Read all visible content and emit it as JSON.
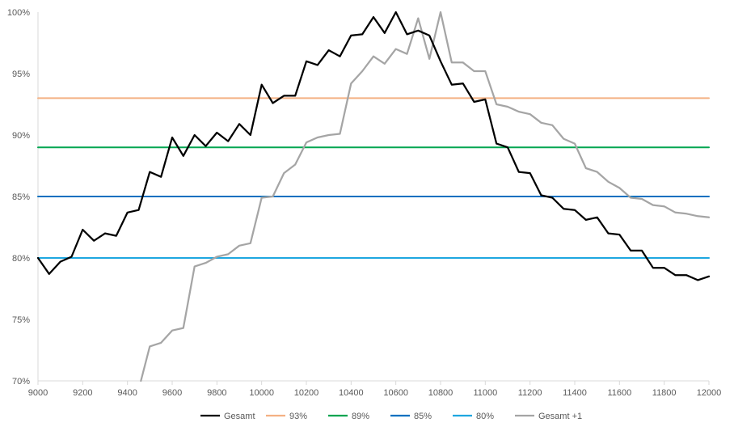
{
  "chart_data": {
    "type": "line",
    "title": "",
    "xlabel": "",
    "ylabel": "",
    "xlim": [
      9000,
      12000
    ],
    "ylim": [
      70,
      100
    ],
    "x_ticks": [
      9000,
      9200,
      9400,
      9600,
      9800,
      10000,
      10200,
      10400,
      10600,
      10800,
      11000,
      11200,
      11400,
      11600,
      11800,
      12000
    ],
    "x_tick_labels": [
      "9000",
      "9200",
      "9400",
      "9600",
      "9800",
      "10000",
      "10200",
      "10400",
      "10600",
      "10800",
      "11000",
      "11200",
      "11400",
      "11600",
      "11800",
      "12000"
    ],
    "y_ticks": [
      70,
      75,
      80,
      85,
      90,
      95,
      100
    ],
    "y_tick_labels": [
      "70%",
      "75%",
      "80%",
      "85%",
      "90%",
      "95%",
      "100%"
    ],
    "grid": {
      "horizontal": false,
      "vertical": false
    },
    "legend_position": "bottom",
    "series": [
      {
        "name": "Gesamt",
        "color": "#000000",
        "x": [
          9000,
          9050,
          9100,
          9150,
          9200,
          9250,
          9300,
          9350,
          9400,
          9450,
          9500,
          9550,
          9600,
          9650,
          9700,
          9750,
          9800,
          9850,
          9900,
          9950,
          10000,
          10050,
          10100,
          10150,
          10200,
          10250,
          10300,
          10350,
          10400,
          10450,
          10500,
          10550,
          10600,
          10650,
          10700,
          10750,
          10800,
          10850,
          10900,
          10950,
          11000,
          11050,
          11100,
          11150,
          11200,
          11250,
          11300,
          11350,
          11400,
          11450,
          11500,
          11550,
          11600,
          11650,
          11700,
          11750,
          11800,
          11850,
          11900,
          11950,
          12000
        ],
        "y": [
          80.0,
          78.7,
          79.7,
          80.1,
          82.3,
          81.4,
          82.0,
          81.8,
          83.7,
          83.9,
          87.0,
          86.6,
          89.8,
          88.3,
          90.0,
          89.1,
          90.2,
          89.5,
          90.9,
          90.0,
          94.1,
          92.6,
          93.2,
          93.2,
          96.0,
          95.7,
          96.9,
          96.4,
          98.1,
          98.2,
          99.6,
          98.3,
          100.0,
          98.2,
          98.5,
          98.1,
          96.0,
          94.1,
          94.2,
          92.7,
          92.9,
          89.3,
          89.0,
          87.0,
          86.9,
          85.1,
          84.9,
          84.0,
          83.9,
          83.1,
          83.3,
          82.0,
          81.9,
          80.6,
          80.6,
          79.2,
          79.2,
          78.6,
          78.6,
          78.2,
          78.5
        ]
      },
      {
        "name": "93%",
        "color": "#f4b183",
        "x": [
          9000,
          12000
        ],
        "y": [
          93,
          93
        ]
      },
      {
        "name": "89%",
        "color": "#00a550",
        "x": [
          9000,
          12000
        ],
        "y": [
          89,
          89
        ]
      },
      {
        "name": "85%",
        "color": "#0070c0",
        "x": [
          9000,
          12000
        ],
        "y": [
          85,
          85
        ]
      },
      {
        "name": "80%",
        "color": "#1ea7e0",
        "x": [
          9000,
          12000
        ],
        "y": [
          80,
          80
        ]
      },
      {
        "name": "Gesamt +1",
        "color": "#a5a5a5",
        "x": [
          9460,
          9500,
          9550,
          9600,
          9650,
          9700,
          9750,
          9800,
          9850,
          9900,
          9950,
          10000,
          10050,
          10100,
          10150,
          10200,
          10250,
          10300,
          10350,
          10400,
          10450,
          10500,
          10550,
          10600,
          10650,
          10700,
          10750,
          10800,
          10850,
          10900,
          10950,
          11000,
          11050,
          11100,
          11150,
          11200,
          11250,
          11300,
          11350,
          11400,
          11450,
          11500,
          11550,
          11600,
          11650,
          11700,
          11750,
          11800,
          11850,
          11900,
          11950,
          12000
        ],
        "y": [
          70.0,
          72.8,
          73.1,
          74.1,
          74.3,
          79.3,
          79.6,
          80.1,
          80.3,
          81.0,
          81.2,
          84.9,
          85.0,
          86.9,
          87.6,
          89.4,
          89.8,
          90.0,
          90.1,
          94.2,
          95.2,
          96.4,
          95.8,
          97.0,
          96.6,
          99.5,
          96.2,
          100.0,
          95.9,
          95.9,
          95.2,
          95.2,
          92.5,
          92.3,
          91.9,
          91.7,
          91.0,
          90.8,
          89.7,
          89.3,
          87.3,
          87.0,
          86.2,
          85.7,
          84.9,
          84.8,
          84.3,
          84.2,
          83.7,
          83.6,
          83.4,
          83.3
        ]
      }
    ],
    "legend_order": [
      "Gesamt",
      "93%",
      "89%",
      "85%",
      "80%",
      "Gesamt +1"
    ]
  }
}
